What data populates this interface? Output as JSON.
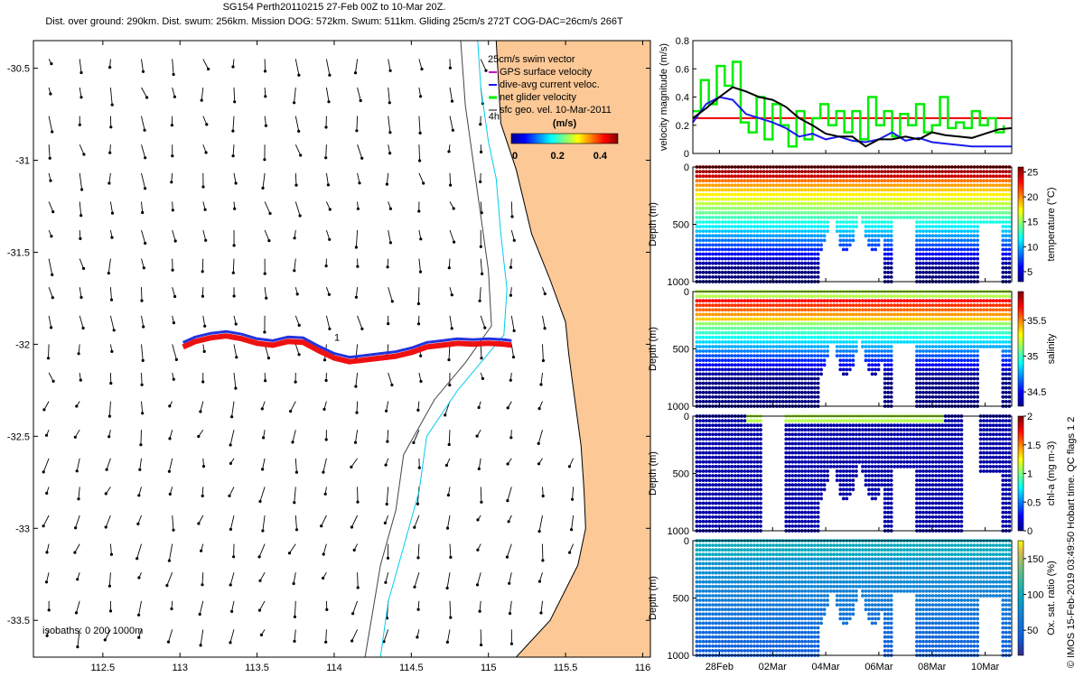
{
  "header": {
    "line1": "SG154 Perth20110215 27-Feb 00Z to 10-Mar 20Z.",
    "line2": "Dist. over ground: 290km. Dist. swum: 256km. Mission DOG: 572km. Swum: 511km. Gliding 25cm/s 272T COG-DAC=26cm/s 266T"
  },
  "watermark": "© IMOS 15-Feb-2019 03:49:50 Hobart time. QC flags 1  2",
  "colors": {
    "land": "#fbc896",
    "coast": "#000000",
    "isobath_200": "#00ccee",
    "gps": "#cc00cc",
    "dac": "#1a1aee",
    "net": "#00ee00",
    "track_red": "#ee1111",
    "track_blue": "#2233dd",
    "ref_line": "#ee0000"
  },
  "chart_data": [
    {
      "type": "scatter",
      "name": "map",
      "xlim": [
        112.05,
        116.05
      ],
      "ylim": [
        -33.7,
        -30.35
      ],
      "xticks": [
        112.5,
        113,
        113.5,
        114,
        114.5,
        115,
        115.5,
        116
      ],
      "yticks": [
        -30.5,
        -31,
        -31.5,
        -32,
        -32.5,
        -33,
        -33.5
      ],
      "xtick_labels": [
        "112.5",
        "113",
        "113.5",
        "114",
        "114.5",
        "115",
        "115.5",
        "116"
      ],
      "ytick_labels": [
        "-30.5",
        "-31",
        "-31.5",
        "-32",
        "-32.5",
        "-33",
        "-33.5"
      ],
      "legend": {
        "entries": [
          "25cm/s swim vector",
          "GPS surface velocity",
          "dive-avg current veloc.",
          "net glider velocity",
          "sfc geo. vel. 10-Mar-2011"
        ],
        "placement": "top-right"
      },
      "colorbar": {
        "label": "(m/s)",
        "ticks": [
          "0",
          "0.2",
          "0.4"
        ],
        "range": [
          0,
          0.5
        ]
      },
      "isobaths_label": "isobaths: 0   200   1000m",
      "annotations": [
        {
          "text": "4h",
          "lon": 115.0,
          "lat": -30.78
        },
        {
          "text": "1",
          "lon": 114.0,
          "lat": -31.98
        }
      ],
      "glider_track": [
        {
          "lon": 113.02,
          "lat": -32.0
        },
        {
          "lon": 113.1,
          "lat": -31.97
        },
        {
          "lon": 113.2,
          "lat": -31.95
        },
        {
          "lon": 113.3,
          "lat": -31.94
        },
        {
          "lon": 113.4,
          "lat": -31.955
        },
        {
          "lon": 113.5,
          "lat": -31.98
        },
        {
          "lon": 113.6,
          "lat": -31.99
        },
        {
          "lon": 113.7,
          "lat": -31.97
        },
        {
          "lon": 113.8,
          "lat": -31.975
        },
        {
          "lon": 113.9,
          "lat": -32.02
        },
        {
          "lon": 114.0,
          "lat": -32.06
        },
        {
          "lon": 114.1,
          "lat": -32.08
        },
        {
          "lon": 114.2,
          "lat": -32.07
        },
        {
          "lon": 114.3,
          "lat": -32.06
        },
        {
          "lon": 114.4,
          "lat": -32.05
        },
        {
          "lon": 114.5,
          "lat": -32.03
        },
        {
          "lon": 114.6,
          "lat": -32.0
        },
        {
          "lon": 114.7,
          "lat": -31.99
        },
        {
          "lon": 114.8,
          "lat": -31.98
        },
        {
          "lon": 114.9,
          "lat": -31.985
        },
        {
          "lon": 115.0,
          "lat": -31.98
        },
        {
          "lon": 115.1,
          "lat": -31.985
        },
        {
          "lon": 115.15,
          "lat": -31.99
        }
      ],
      "coastline": [
        {
          "lon": 115.05,
          "lat": -30.35
        },
        {
          "lon": 115.08,
          "lat": -30.8
        },
        {
          "lon": 115.18,
          "lat": -31.05
        },
        {
          "lon": 115.28,
          "lat": -31.4
        },
        {
          "lon": 115.4,
          "lat": -31.65
        },
        {
          "lon": 115.5,
          "lat": -31.88
        },
        {
          "lon": 115.52,
          "lat": -32.05
        },
        {
          "lon": 115.56,
          "lat": -32.3
        },
        {
          "lon": 115.6,
          "lat": -32.55
        },
        {
          "lon": 115.62,
          "lat": -32.8
        },
        {
          "lon": 115.63,
          "lat": -33.0
        },
        {
          "lon": 115.58,
          "lat": -33.2
        },
        {
          "lon": 115.4,
          "lat": -33.5
        },
        {
          "lon": 115.18,
          "lat": -33.7
        }
      ],
      "isobath_200": [
        {
          "lon": 114.93,
          "lat": -30.35
        },
        {
          "lon": 114.95,
          "lat": -30.6
        },
        {
          "lon": 115.0,
          "lat": -30.9
        },
        {
          "lon": 115.05,
          "lat": -31.1
        },
        {
          "lon": 115.08,
          "lat": -31.4
        },
        {
          "lon": 115.12,
          "lat": -31.7
        },
        {
          "lon": 115.1,
          "lat": -31.95
        },
        {
          "lon": 114.95,
          "lat": -32.1
        },
        {
          "lon": 114.8,
          "lat": -32.25
        },
        {
          "lon": 114.6,
          "lat": -32.5
        },
        {
          "lon": 114.55,
          "lat": -32.8
        },
        {
          "lon": 114.45,
          "lat": -33.1
        },
        {
          "lon": 114.35,
          "lat": -33.4
        },
        {
          "lon": 114.3,
          "lat": -33.7
        }
      ],
      "isobath_1000": [
        {
          "lon": 114.82,
          "lat": -30.35
        },
        {
          "lon": 114.85,
          "lat": -30.7
        },
        {
          "lon": 114.9,
          "lat": -31.0
        },
        {
          "lon": 114.95,
          "lat": -31.3
        },
        {
          "lon": 115.0,
          "lat": -31.6
        },
        {
          "lon": 115.02,
          "lat": -31.9
        },
        {
          "lon": 114.85,
          "lat": -32.1
        },
        {
          "lon": 114.65,
          "lat": -32.3
        },
        {
          "lon": 114.45,
          "lat": -32.6
        },
        {
          "lon": 114.4,
          "lat": -32.9
        },
        {
          "lon": 114.3,
          "lat": -33.2
        },
        {
          "lon": 114.25,
          "lat": -33.45
        },
        {
          "lon": 114.2,
          "lat": -33.7
        }
      ]
    },
    {
      "type": "line",
      "name": "velocity",
      "ylabel": "velocity magnitude (m/s)",
      "ylim": [
        0,
        0.8
      ],
      "yticks": [
        0,
        0.2,
        0.4,
        0.6,
        0.8
      ],
      "ytick_labels": [
        "0",
        "0.2",
        "0.4",
        "0.6",
        "0.8"
      ],
      "x_range_days": [
        0,
        12
      ],
      "series": [
        {
          "color": "#ee0000",
          "values": [
            [
              0.0,
              0.25
            ],
            [
              12.0,
              0.25
            ]
          ]
        },
        {
          "color": "#00ee00",
          "values": [
            [
              0.0,
              0.3
            ],
            [
              0.3,
              0.52
            ],
            [
              0.6,
              0.35
            ],
            [
              0.9,
              0.62
            ],
            [
              1.2,
              0.48
            ],
            [
              1.5,
              0.65
            ],
            [
              1.8,
              0.22
            ],
            [
              2.1,
              0.15
            ],
            [
              2.4,
              0.4
            ],
            [
              2.7,
              0.1
            ],
            [
              3.0,
              0.35
            ],
            [
              3.3,
              0.2
            ],
            [
              3.6,
              0.05
            ],
            [
              3.9,
              0.3
            ],
            [
              4.2,
              0.1
            ],
            [
              4.5,
              0.25
            ],
            [
              4.8,
              0.35
            ],
            [
              5.1,
              0.2
            ],
            [
              5.4,
              0.3
            ],
            [
              5.7,
              0.15
            ],
            [
              6.0,
              0.3
            ],
            [
              6.3,
              0.1
            ],
            [
              6.6,
              0.4
            ],
            [
              6.9,
              0.2
            ],
            [
              7.2,
              0.3
            ],
            [
              7.5,
              0.12
            ],
            [
              7.8,
              0.28
            ],
            [
              8.1,
              0.2
            ],
            [
              8.4,
              0.35
            ],
            [
              8.7,
              0.15
            ],
            [
              9.0,
              0.2
            ],
            [
              9.3,
              0.4
            ],
            [
              9.6,
              0.18
            ],
            [
              9.9,
              0.22
            ],
            [
              10.2,
              0.18
            ],
            [
              10.5,
              0.3
            ],
            [
              10.8,
              0.2
            ],
            [
              11.1,
              0.25
            ],
            [
              11.4,
              0.15
            ],
            [
              11.7,
              0.2
            ]
          ]
        },
        {
          "color": "#1a1aee",
          "values": [
            [
              0.0,
              0.22
            ],
            [
              0.5,
              0.35
            ],
            [
              1.0,
              0.4
            ],
            [
              1.5,
              0.38
            ],
            [
              2.0,
              0.28
            ],
            [
              2.5,
              0.25
            ],
            [
              3.0,
              0.22
            ],
            [
              3.5,
              0.18
            ],
            [
              4.0,
              0.12
            ],
            [
              4.5,
              0.14
            ],
            [
              5.0,
              0.1
            ],
            [
              5.5,
              0.12
            ],
            [
              6.0,
              0.09
            ],
            [
              6.5,
              0.08
            ],
            [
              7.0,
              0.1
            ],
            [
              7.5,
              0.15
            ],
            [
              8.0,
              0.09
            ],
            [
              8.5,
              0.11
            ],
            [
              9.0,
              0.08
            ],
            [
              9.5,
              0.07
            ],
            [
              10.0,
              0.06
            ],
            [
              10.5,
              0.05
            ],
            [
              11.0,
              0.05
            ],
            [
              12.0,
              0.05
            ]
          ]
        },
        {
          "color": "#000000",
          "values": [
            [
              0.0,
              0.25
            ],
            [
              0.5,
              0.32
            ],
            [
              1.0,
              0.4
            ],
            [
              1.5,
              0.47
            ],
            [
              2.0,
              0.44
            ],
            [
              2.5,
              0.4
            ],
            [
              3.0,
              0.38
            ],
            [
              3.5,
              0.33
            ],
            [
              4.0,
              0.25
            ],
            [
              4.5,
              0.2
            ],
            [
              5.0,
              0.14
            ],
            [
              5.5,
              0.12
            ],
            [
              6.0,
              0.12
            ],
            [
              6.5,
              0.05
            ],
            [
              7.0,
              0.1
            ],
            [
              7.5,
              0.1
            ],
            [
              8.0,
              0.12
            ],
            [
              8.5,
              0.1
            ],
            [
              9.0,
              0.15
            ],
            [
              9.5,
              0.13
            ],
            [
              10.0,
              0.12
            ],
            [
              10.5,
              0.11
            ],
            [
              11.0,
              0.14
            ],
            [
              11.5,
              0.17
            ],
            [
              12.0,
              0.18
            ]
          ]
        }
      ]
    },
    {
      "type": "heatmap",
      "name": "temperature",
      "ylabel": "Depth (m)",
      "cbar_label": "temperature (°C)",
      "ylim": [
        0,
        1000
      ],
      "yticks": [
        0,
        500,
        1000
      ],
      "ytick_labels": [
        "0",
        "500",
        "1000"
      ],
      "cbar_range": [
        3,
        26
      ],
      "cbar_ticks": [
        5,
        10,
        15,
        20,
        25
      ],
      "cbar_tick_labels": [
        "5",
        "10",
        "15",
        "20",
        "25"
      ]
    },
    {
      "type": "heatmap",
      "name": "salinity",
      "ylabel": "Depth (m)",
      "cbar_label": "salinity",
      "ylim": [
        0,
        1000
      ],
      "yticks": [
        0,
        500,
        1000
      ],
      "ytick_labels": [
        "0",
        "500",
        "1000"
      ],
      "cbar_range": [
        34.3,
        35.9
      ],
      "cbar_ticks": [
        34.5,
        35,
        35.5
      ],
      "cbar_tick_labels": [
        "34.5",
        "35",
        "35.5"
      ]
    },
    {
      "type": "heatmap",
      "name": "chl",
      "ylabel": "Depth (m)",
      "cbar_label": "chl-a (mg m-3)",
      "ylim": [
        0,
        1000
      ],
      "yticks": [
        0,
        500,
        1000
      ],
      "ytick_labels": [
        "0",
        "500",
        "1000"
      ],
      "cbar_range": [
        0,
        2
      ],
      "cbar_ticks": [
        0,
        0.5,
        1,
        1.5,
        2
      ],
      "cbar_tick_labels": [
        "0",
        "0.5",
        "1",
        "1.5",
        "2"
      ]
    },
    {
      "type": "heatmap",
      "name": "oxygen",
      "ylabel": "Depth (m)",
      "cbar_label": "Ox. sat. ratio (%)",
      "ylim": [
        0,
        1000
      ],
      "yticks": [
        0,
        500,
        1000
      ],
      "ytick_labels": [
        "0",
        "500",
        "1000"
      ],
      "cbar_range": [
        15,
        175
      ],
      "cbar_ticks": [
        50,
        100,
        150
      ],
      "cbar_tick_labels": [
        "50",
        "100",
        "150"
      ],
      "x_range_days": [
        0,
        12
      ],
      "xticks": [
        1,
        3,
        5,
        7,
        9,
        11
      ],
      "xtick_labels": [
        "28Feb",
        "02Mar",
        "04Mar",
        "06Mar",
        "08Mar",
        "10Mar"
      ]
    }
  ]
}
